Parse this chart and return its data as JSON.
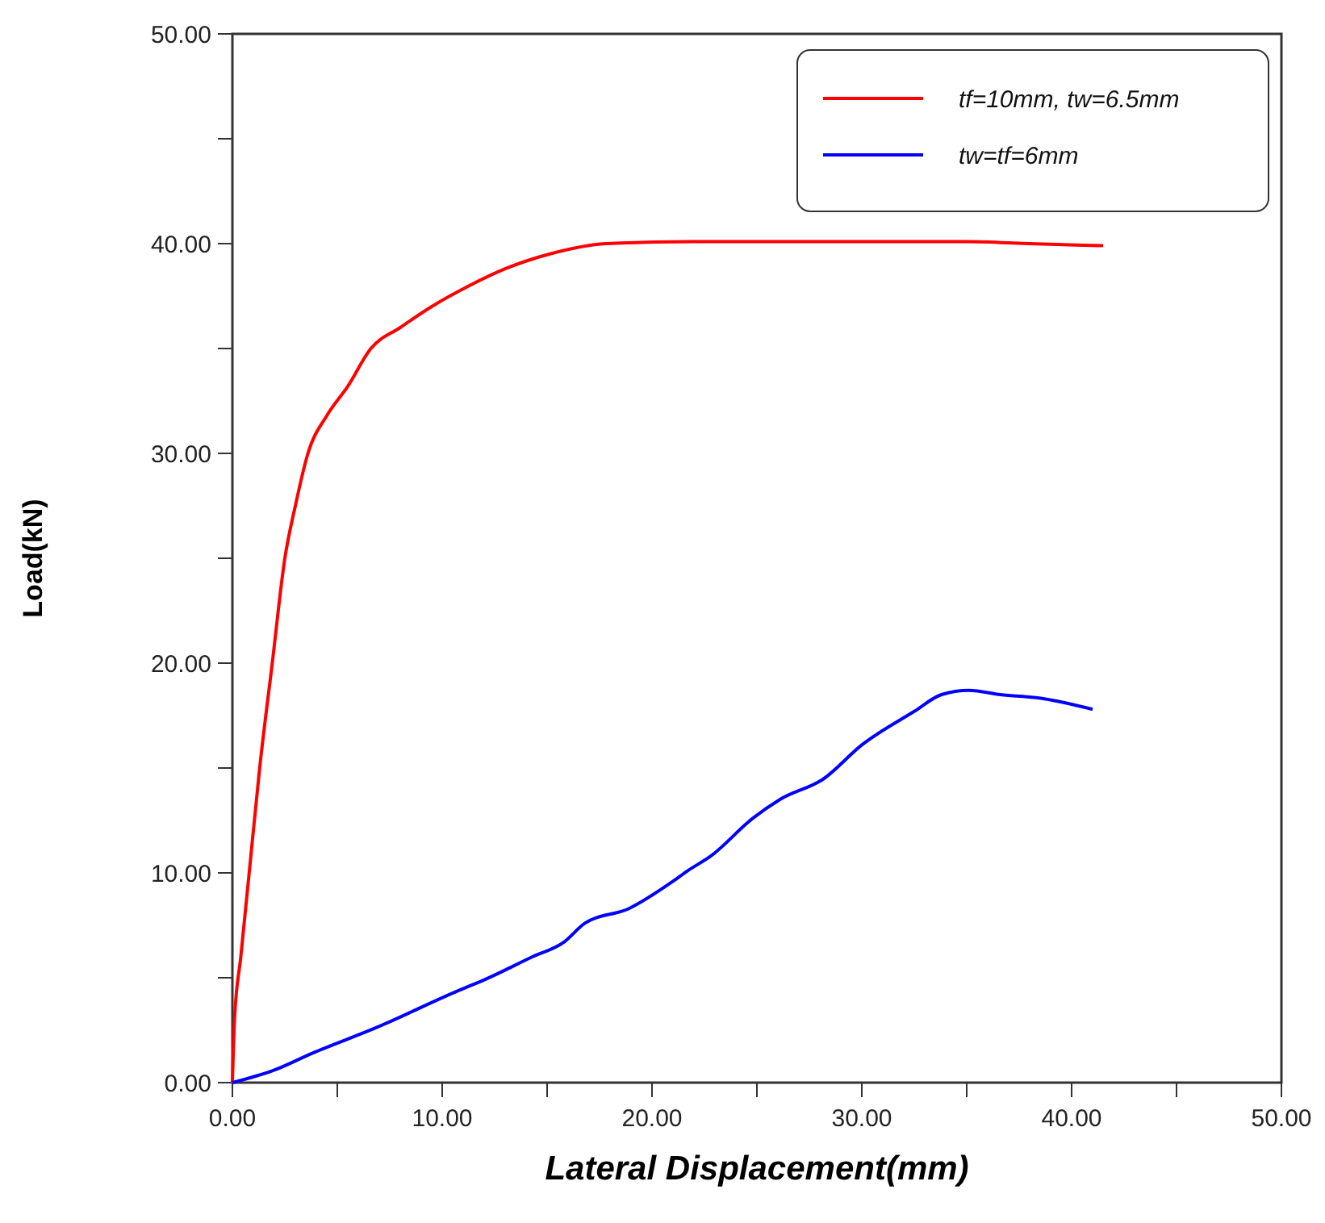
{
  "chart_data": {
    "type": "line",
    "xlabel": "Lateral Displacement(mm)",
    "ylabel": "Load(kN)",
    "xlim": [
      0,
      50
    ],
    "ylim": [
      0,
      50
    ],
    "xticks": [
      {
        "value": 0,
        "label": "0.00"
      },
      {
        "value": 5,
        "label": null
      },
      {
        "value": 10,
        "label": "10.00"
      },
      {
        "value": 15,
        "label": null
      },
      {
        "value": 20,
        "label": "20.00"
      },
      {
        "value": 25,
        "label": null
      },
      {
        "value": 30,
        "label": "30.00"
      },
      {
        "value": 35,
        "label": null
      },
      {
        "value": 40,
        "label": "40.00"
      },
      {
        "value": 45,
        "label": null
      },
      {
        "value": 50,
        "label": "50.00"
      }
    ],
    "yticks": [
      {
        "value": 0,
        "label": "0.00"
      },
      {
        "value": 5,
        "label": null
      },
      {
        "value": 10,
        "label": "10.00"
      },
      {
        "value": 15,
        "label": null
      },
      {
        "value": 20,
        "label": "20.00"
      },
      {
        "value": 25,
        "label": null
      },
      {
        "value": 30,
        "label": "30.00"
      },
      {
        "value": 35,
        "label": null
      },
      {
        "value": 40,
        "label": "40.00"
      },
      {
        "value": 45,
        "label": null
      },
      {
        "value": 50,
        "label": "50.00"
      }
    ],
    "grid": false,
    "legend": "top right",
    "marker": "none",
    "line_style": "solid",
    "series": [
      {
        "name": "tf=10mm, tw=6.5mm",
        "color": "#ff0000",
        "x": [
          0,
          0.1,
          0.4,
          0.8,
          1.3,
          1.9,
          2.5,
          3,
          3.6,
          4.5,
          5.5,
          6.6,
          8,
          9.5,
          11.3,
          13,
          15.1,
          17.8,
          22,
          30,
          35,
          38,
          41.5
        ],
        "values": [
          0,
          3,
          6,
          10,
          15,
          20,
          25,
          27.5,
          30,
          31.8,
          33.2,
          35,
          36,
          37,
          38,
          38.8,
          39.5,
          40,
          40.1,
          40.1,
          40.1,
          40,
          39.9
        ]
      },
      {
        "name": "tw=tf=6mm",
        "color": "#0000ff",
        "x": [
          0,
          2,
          3.8,
          6.8,
          10.8,
          12,
          14.3,
          15.8,
          16.8,
          18.9,
          21,
          21.7,
          22.8,
          24.8,
          26.1,
          28.2,
          30,
          32.5,
          33.8,
          35.1,
          36.6,
          38.7,
          41
        ],
        "values": [
          0,
          0.6,
          1.4,
          2.6,
          4.4,
          4.9,
          6,
          6.7,
          7.6,
          8.3,
          9.6,
          10.1,
          10.8,
          12.6,
          13.5,
          14.5,
          16.1,
          17.7,
          18.5,
          18.7,
          18.5,
          18.3,
          17.8
        ]
      }
    ]
  }
}
